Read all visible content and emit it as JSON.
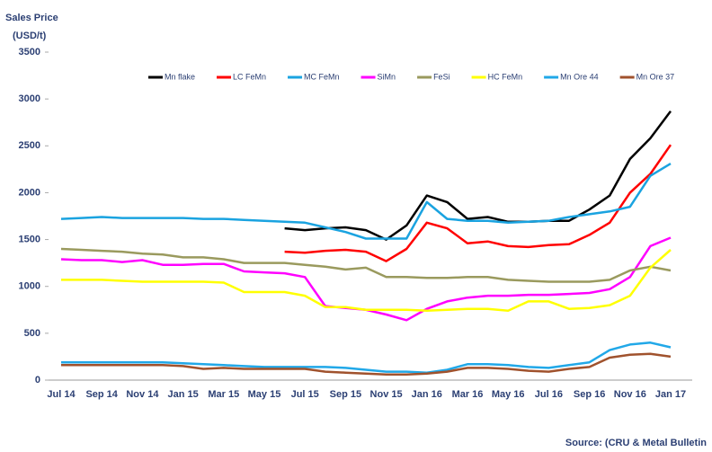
{
  "chart_data": {
    "type": "line",
    "title": "Sales Price",
    "y_label": "(USD/t)",
    "source": "Source: (CRU & Metal Bulletin",
    "categories": [
      "Jul 14",
      null,
      "Sep 14",
      null,
      "Nov 14",
      null,
      "Jan 15",
      null,
      "Mar 15",
      null,
      "May 15",
      null,
      "Jul 15",
      null,
      "Sep 15",
      null,
      "Nov 15",
      null,
      "Jan 16",
      null,
      "Mar 16",
      null,
      "May 16",
      null,
      "Jul 16",
      null,
      "Sep 16",
      null,
      "Nov 16",
      null,
      "Jan 17"
    ],
    "ylim": [
      0,
      3500
    ],
    "yticks": [
      0,
      500,
      1000,
      1500,
      2000,
      2500,
      3000,
      3500
    ],
    "grid": false,
    "series": [
      {
        "name": "Mn flake",
        "color": "#000000",
        "values": [
          null,
          null,
          null,
          null,
          null,
          null,
          null,
          null,
          null,
          null,
          null,
          1620,
          1600,
          1620,
          1630,
          1600,
          1500,
          1650,
          1970,
          1900,
          1720,
          1740,
          1690,
          1690,
          1700,
          1700,
          1820,
          1970,
          2360,
          2580,
          2870
        ]
      },
      {
        "name": "LC FeMn",
        "color": "#ff0000",
        "values": [
          null,
          null,
          null,
          null,
          null,
          null,
          null,
          null,
          null,
          null,
          null,
          1370,
          1360,
          1380,
          1390,
          1370,
          1270,
          1400,
          1680,
          1620,
          1460,
          1480,
          1430,
          1420,
          1440,
          1450,
          1550,
          1680,
          2000,
          2200,
          2510
        ]
      },
      {
        "name": "MC FeMn",
        "color": "#1aa3e0",
        "values": [
          1720,
          1730,
          1740,
          1730,
          1730,
          1730,
          1730,
          1720,
          1720,
          1710,
          1700,
          1690,
          1680,
          1630,
          1580,
          1510,
          1510,
          1510,
          1900,
          1720,
          1700,
          1700,
          1680,
          1690,
          1700,
          1740,
          1770,
          1800,
          1850,
          2180,
          2310
        ]
      },
      {
        "name": "SiMn",
        "color": "#ff00ff",
        "values": [
          1290,
          1280,
          1280,
          1260,
          1280,
          1230,
          1230,
          1240,
          1240,
          1160,
          1150,
          1140,
          1100,
          790,
          770,
          750,
          700,
          640,
          760,
          840,
          880,
          900,
          900,
          910,
          910,
          920,
          930,
          970,
          1100,
          1430,
          1520
        ]
      },
      {
        "name": "FeSi",
        "color": "#9a9a5e",
        "values": [
          1400,
          1390,
          1380,
          1370,
          1350,
          1340,
          1310,
          1310,
          1290,
          1250,
          1250,
          1250,
          1230,
          1210,
          1180,
          1200,
          1100,
          1100,
          1090,
          1090,
          1100,
          1100,
          1070,
          1060,
          1050,
          1050,
          1050,
          1070,
          1170,
          1210,
          1170
        ]
      },
      {
        "name": "HC FeMn",
        "color": "#ffff00",
        "values": [
          1070,
          1070,
          1070,
          1060,
          1050,
          1050,
          1050,
          1050,
          1040,
          940,
          940,
          940,
          900,
          780,
          780,
          750,
          750,
          750,
          740,
          750,
          760,
          760,
          740,
          840,
          840,
          760,
          770,
          800,
          900,
          1200,
          1390
        ]
      },
      {
        "name": "Mn Ore 44",
        "color": "#21a8e8",
        "values": [
          190,
          190,
          190,
          190,
          190,
          190,
          180,
          170,
          160,
          150,
          140,
          140,
          140,
          140,
          130,
          110,
          90,
          90,
          80,
          110,
          170,
          170,
          160,
          140,
          130,
          160,
          190,
          320,
          380,
          400,
          350
        ]
      },
      {
        "name": "Mn Ore 37",
        "color": "#a0522d",
        "values": [
          160,
          160,
          160,
          160,
          160,
          160,
          150,
          120,
          130,
          120,
          120,
          120,
          120,
          90,
          80,
          70,
          60,
          60,
          70,
          90,
          130,
          130,
          120,
          100,
          90,
          120,
          140,
          240,
          270,
          280,
          250
        ]
      }
    ]
  }
}
